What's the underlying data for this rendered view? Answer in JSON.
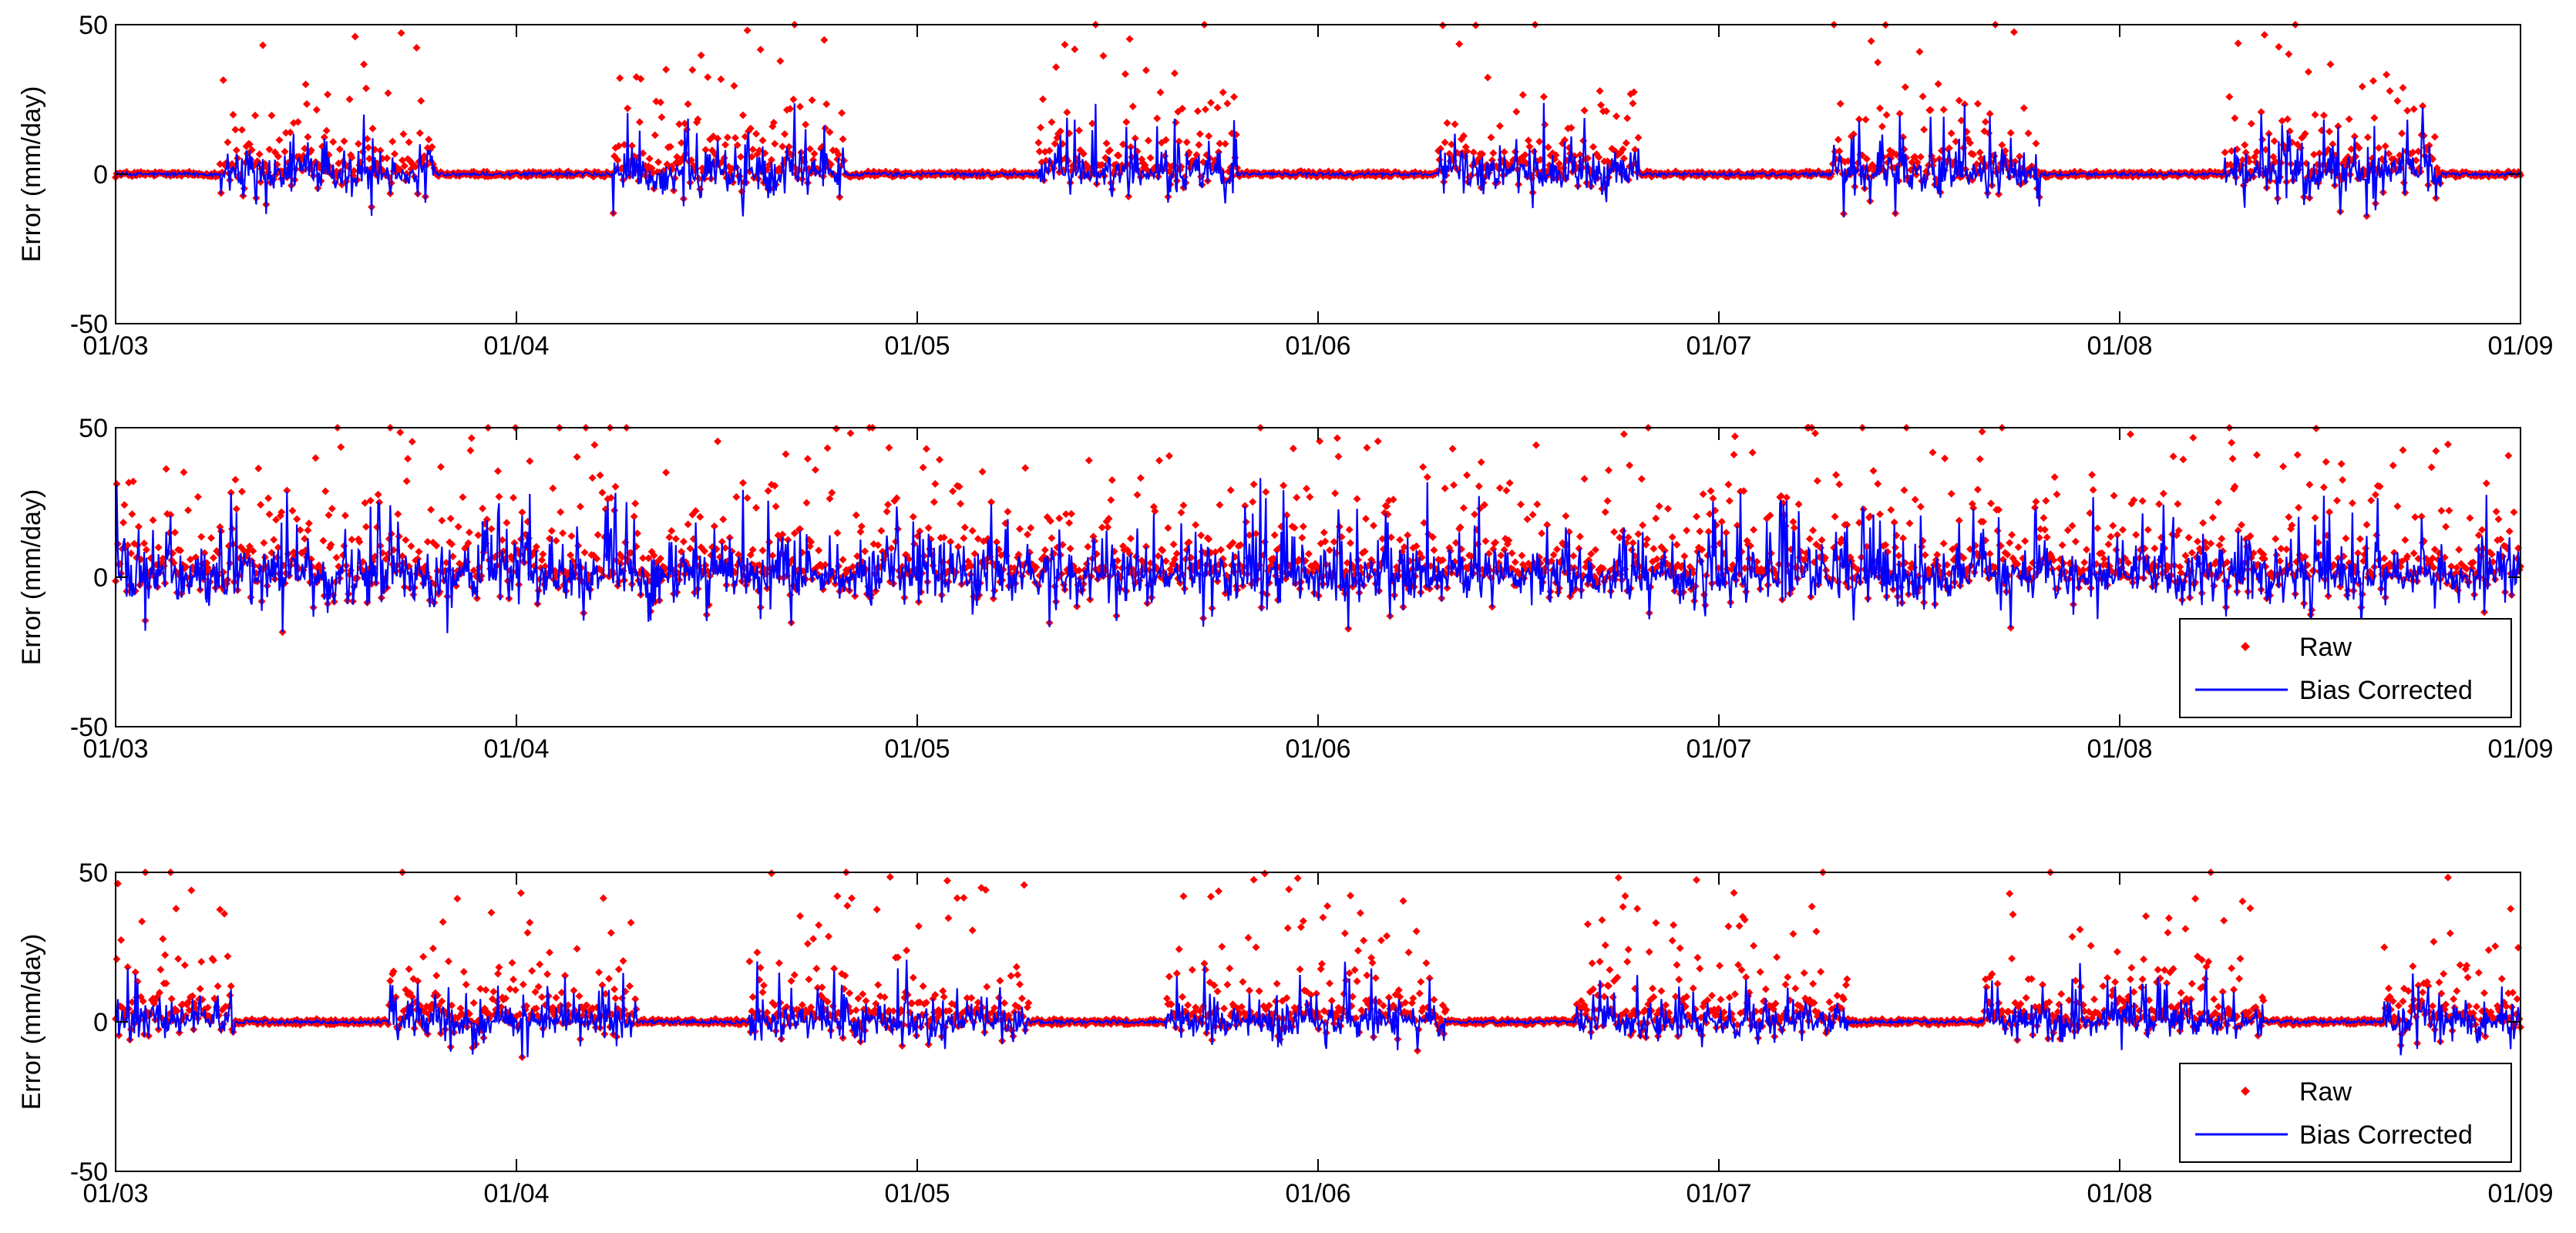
{
  "chart_data": [
    {
      "type": "line",
      "panel": "top",
      "ylabel": "Error (mm/day)",
      "ylim": [
        -50,
        50
      ],
      "yticks": [
        "50",
        "0",
        "-50"
      ],
      "xticks": [
        "01/03",
        "01/04",
        "01/05",
        "01/06",
        "01/07",
        "01/08",
        "01/09"
      ],
      "legend": null,
      "series": [
        {
          "name": "Raw",
          "style": "markers",
          "color": "#ff0000"
        },
        {
          "name": "Bias Corrected",
          "style": "line",
          "color": "#0000ff"
        }
      ],
      "pattern": "wet seasons around mid-year months, near zero otherwise",
      "active_windows": [
        [
          0.26,
          0.8
        ],
        [
          1.24,
          1.82
        ],
        [
          2.3,
          2.8
        ],
        [
          3.3,
          3.8
        ],
        [
          4.28,
          4.8
        ],
        [
          5.26,
          5.8
        ]
      ],
      "amplitude_raw": 46,
      "amplitude_bias": 38
    },
    {
      "type": "line",
      "panel": "middle",
      "ylabel": "Error (mm/day)",
      "ylim": [
        -50,
        50
      ],
      "yticks": [
        "50",
        "0",
        "-50"
      ],
      "xticks": [
        "01/03",
        "01/04",
        "01/05",
        "01/06",
        "01/07",
        "01/08",
        "01/09"
      ],
      "legend": {
        "placement": "lower-right",
        "entries": [
          "Raw",
          "Bias Corrected"
        ]
      },
      "series": [
        {
          "name": "Raw",
          "style": "markers",
          "color": "#ff0000"
        },
        {
          "name": "Bias Corrected",
          "style": "line",
          "color": "#0000ff"
        }
      ],
      "pattern": "year-round activity",
      "active_windows": [
        [
          0.0,
          6.0
        ]
      ],
      "amplitude_raw": 48,
      "amplitude_bias": 50
    },
    {
      "type": "line",
      "panel": "bottom",
      "ylabel": "Error (mm/day)",
      "ylim": [
        -50,
        50
      ],
      "yticks": [
        "50",
        "0",
        "-50"
      ],
      "xticks": [
        "01/03",
        "01/04",
        "01/05",
        "01/06",
        "01/07",
        "01/08",
        "01/09"
      ],
      "legend": {
        "placement": "lower-right",
        "entries": [
          "Raw",
          "Bias Corrected"
        ]
      },
      "series": [
        {
          "name": "Raw",
          "style": "markers",
          "color": "#ff0000"
        },
        {
          "name": "Bias Corrected",
          "style": "line",
          "color": "#0000ff"
        }
      ],
      "pattern": "wet seasons around year boundaries",
      "active_windows": [
        [
          0.0,
          0.3
        ],
        [
          0.68,
          1.3
        ],
        [
          1.58,
          2.28
        ],
        [
          2.62,
          3.32
        ],
        [
          3.64,
          4.32
        ],
        [
          4.66,
          5.36
        ],
        [
          5.66,
          6.0
        ]
      ],
      "amplitude_raw": 49,
      "amplitude_bias": 32
    }
  ]
}
